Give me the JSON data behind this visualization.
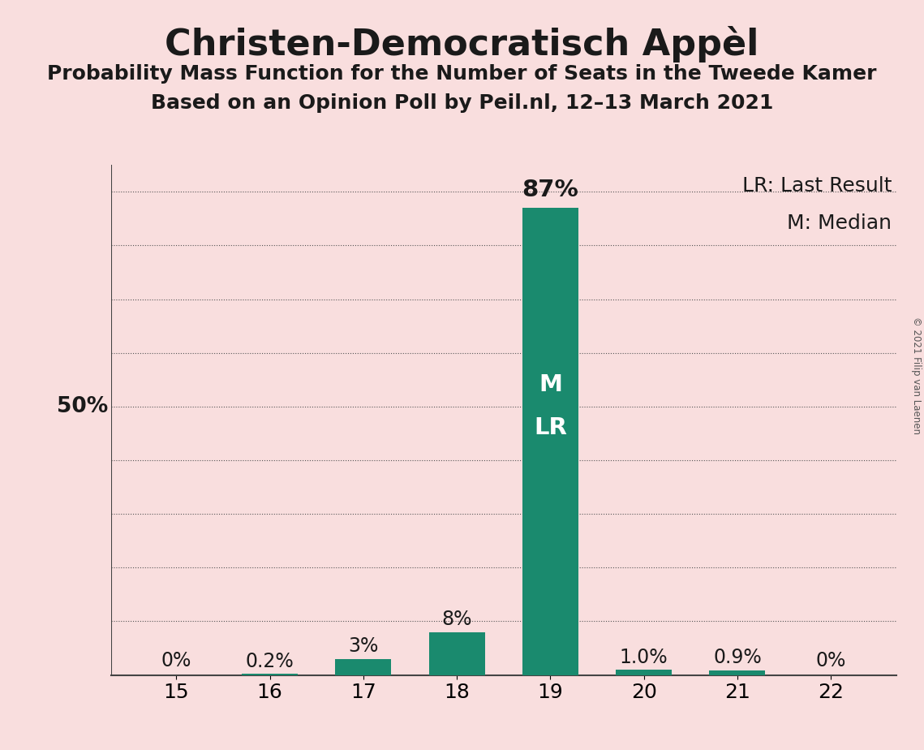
{
  "title": "Christen-Democratisch Appèl",
  "subtitle1": "Probability Mass Function for the Number of Seats in the Tweede Kamer",
  "subtitle2": "Based on an Opinion Poll by Peil.nl, 12–13 March 2021",
  "copyright": "© 2021 Filip van Laenen",
  "categories": [
    15,
    16,
    17,
    18,
    19,
    20,
    21,
    22
  ],
  "values": [
    0.0,
    0.2,
    3.0,
    8.0,
    87.0,
    1.0,
    0.9,
    0.0
  ],
  "labels": [
    "0%",
    "0.2%",
    "3%",
    "8%",
    "87%",
    "1.0%",
    "0.9%",
    "0%"
  ],
  "bar_color": "#1a8a6e",
  "background_color": "#f9dede",
  "text_color": "#1a1a1a",
  "white_text": "#ffffff",
  "legend_lr": "LR: Last Result",
  "legend_m": "M: Median",
  "ylabel_50": "50%",
  "ylim": [
    0,
    95
  ],
  "ytick_values": [
    10,
    20,
    30,
    40,
    50,
    60,
    70,
    80,
    90
  ],
  "title_fontsize": 32,
  "subtitle_fontsize": 18,
  "label_fontsize": 17,
  "tick_fontsize": 18,
  "legend_fontsize": 18,
  "bar_width": 0.6
}
